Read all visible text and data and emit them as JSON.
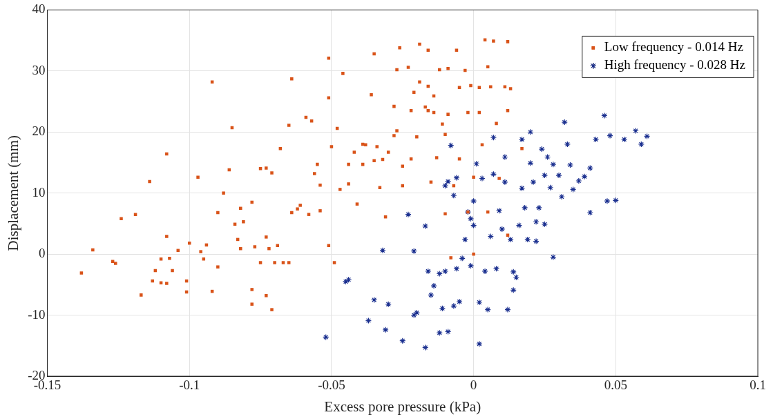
{
  "chart_data": {
    "type": "scatter",
    "xlabel": "Excess pore pressure (kPa)",
    "ylabel": "Displacement (mm)",
    "xlim": [
      -0.15,
      0.1
    ],
    "xticks": [
      -0.15,
      -0.1,
      -0.05,
      0,
      0.05,
      0.1
    ],
    "ylim": [
      -20,
      40
    ],
    "yticks": [
      -20,
      -10,
      0,
      10,
      20,
      30,
      40
    ],
    "grid": true,
    "legend": "top right",
    "series": [
      {
        "name": "Low frequency - 0.014 Hz",
        "color": "#d95319",
        "marker": "square",
        "x": [
          -0.138,
          -0.134,
          -0.127,
          -0.124,
          -0.126,
          -0.119,
          -0.117,
          -0.114,
          -0.113,
          -0.112,
          -0.11,
          -0.11,
          -0.108,
          -0.108,
          -0.107,
          -0.106,
          -0.108,
          -0.104,
          -0.101,
          -0.101,
          -0.1,
          -0.097,
          -0.096,
          -0.095,
          -0.094,
          -0.092,
          -0.092,
          -0.09,
          -0.09,
          -0.088,
          -0.086,
          -0.085,
          -0.084,
          -0.083,
          -0.082,
          -0.082,
          -0.081,
          -0.078,
          -0.078,
          -0.078,
          -0.077,
          -0.075,
          -0.075,
          -0.073,
          -0.073,
          -0.073,
          -0.072,
          -0.071,
          -0.071,
          -0.07,
          -0.069,
          -0.068,
          -0.067,
          -0.065,
          -0.064,
          -0.065,
          -0.064,
          -0.062,
          -0.061,
          -0.059,
          -0.058,
          -0.057,
          -0.056,
          -0.055,
          -0.054,
          -0.054,
          -0.051,
          -0.051,
          -0.051,
          -0.05,
          -0.049,
          -0.048,
          -0.047,
          -0.046,
          -0.044,
          -0.044,
          -0.042,
          -0.041,
          -0.039,
          -0.039,
          -0.038,
          -0.036,
          -0.035,
          -0.035,
          -0.034,
          -0.033,
          -0.032,
          -0.031,
          -0.03,
          -0.028,
          -0.028,
          -0.027,
          -0.027,
          -0.026,
          -0.025,
          -0.025,
          -0.023,
          -0.022,
          -0.022,
          -0.021,
          -0.02,
          -0.019,
          -0.019,
          -0.017,
          -0.016,
          -0.016,
          -0.016,
          -0.015,
          -0.014,
          -0.014,
          -0.013,
          -0.012,
          -0.011,
          -0.01,
          -0.01,
          -0.009,
          -0.009,
          -0.008,
          -0.007,
          -0.006,
          -0.005,
          -0.005,
          -0.003,
          -0.002,
          -0.002,
          -0.001,
          0.0,
          0.0,
          0.002,
          0.002,
          0.003,
          0.004,
          0.005,
          0.005,
          0.006,
          0.007,
          0.008,
          0.009,
          0.011,
          0.012,
          0.012,
          0.013,
          0.012,
          0.017
        ],
        "values": [
          -3.1,
          0.7,
          -1.2,
          5.8,
          -1.5,
          6.5,
          -6.7,
          11.9,
          -4.4,
          -2.7,
          -0.8,
          -4.7,
          16.4,
          2.9,
          -0.7,
          -2.7,
          -4.8,
          0.6,
          -4.4,
          -6.2,
          1.8,
          12.6,
          0.4,
          -0.8,
          1.5,
          28.2,
          -6.1,
          -2.1,
          6.8,
          10.0,
          13.8,
          20.7,
          4.9,
          2.4,
          0.9,
          7.5,
          5.3,
          8.5,
          -5.8,
          -8.2,
          1.2,
          -1.4,
          14.0,
          14.1,
          2.8,
          -6.8,
          0.9,
          13.3,
          -9.1,
          -1.4,
          1.4,
          17.3,
          -1.4,
          -1.4,
          28.7,
          21.1,
          6.8,
          7.4,
          8.0,
          22.4,
          6.5,
          21.8,
          13.2,
          14.7,
          7.1,
          11.3,
          32.1,
          25.6,
          1.4,
          17.6,
          -1.4,
          20.6,
          10.6,
          29.6,
          14.7,
          11.5,
          16.7,
          8.2,
          14.7,
          18.0,
          17.9,
          26.1,
          32.8,
          15.3,
          17.6,
          10.9,
          15.5,
          6.1,
          16.7,
          19.4,
          24.2,
          20.2,
          30.2,
          33.8,
          11.2,
          14.4,
          30.6,
          23.5,
          15.6,
          26.5,
          19.2,
          34.4,
          28.2,
          24.1,
          23.5,
          27.5,
          33.4,
          11.8,
          25.9,
          23.2,
          15.8,
          30.2,
          21.3,
          6.6,
          19.6,
          30.4,
          22.9,
          -0.6,
          11.2,
          33.4,
          27.3,
          15.6,
          30.1,
          6.9,
          23.2,
          27.6,
          0.0,
          12.6,
          27.3,
          23.2,
          17.9,
          35.1,
          6.9,
          30.7,
          27.4,
          34.9,
          21.4,
          12.4,
          27.4,
          34.8,
          23.5,
          27.1,
          3.1,
          17.3
        ]
      },
      {
        "name": "High frequency - 0.028 Hz",
        "color": "#1a2f8f",
        "marker": "cross",
        "x": [
          -0.052,
          -0.045,
          -0.044,
          -0.037,
          -0.035,
          -0.032,
          -0.031,
          -0.03,
          -0.025,
          -0.023,
          -0.021,
          -0.021,
          -0.02,
          -0.017,
          -0.017,
          -0.016,
          -0.015,
          -0.014,
          -0.012,
          -0.012,
          -0.011,
          -0.01,
          -0.01,
          -0.009,
          -0.009,
          -0.008,
          -0.007,
          -0.007,
          -0.006,
          -0.006,
          -0.005,
          -0.004,
          -0.003,
          -0.002,
          -0.001,
          -0.001,
          0.0,
          0.0,
          0.001,
          0.002,
          0.002,
          0.003,
          0.004,
          0.005,
          0.006,
          0.007,
          0.007,
          0.008,
          0.009,
          0.01,
          0.011,
          0.011,
          0.012,
          0.013,
          0.014,
          0.014,
          0.015,
          0.016,
          0.017,
          0.017,
          0.018,
          0.019,
          0.02,
          0.02,
          0.021,
          0.022,
          0.022,
          0.023,
          0.024,
          0.025,
          0.025,
          0.026,
          0.027,
          0.028,
          0.028,
          0.03,
          0.031,
          0.032,
          0.033,
          0.034,
          0.035,
          0.037,
          0.039,
          0.041,
          0.041,
          0.043,
          0.046,
          0.047,
          0.048,
          0.05,
          0.053,
          0.057,
          0.059,
          0.061
        ],
        "values": [
          -13.6,
          -4.5,
          -4.2,
          -10.9,
          -7.5,
          0.6,
          -12.4,
          -8.2,
          -14.2,
          6.5,
          0.5,
          -10.0,
          -9.6,
          -15.3,
          4.6,
          -2.8,
          -6.7,
          -5.2,
          -12.9,
          -3.2,
          -8.9,
          11.2,
          -2.8,
          -12.7,
          11.9,
          17.8,
          -8.5,
          9.6,
          -2.4,
          12.5,
          -7.8,
          -0.7,
          2.4,
          6.9,
          -1.9,
          5.8,
          8.7,
          4.7,
          14.8,
          -7.9,
          -14.7,
          12.4,
          -2.8,
          -9.1,
          2.9,
          13.1,
          19.1,
          -2.4,
          7.1,
          4.1,
          11.8,
          15.9,
          -9.1,
          2.4,
          -5.9,
          -2.9,
          -3.8,
          4.7,
          10.8,
          18.8,
          7.6,
          2.4,
          20.0,
          14.9,
          11.8,
          5.3,
          2.1,
          7.6,
          17.2,
          12.9,
          4.9,
          15.9,
          10.9,
          14.7,
          -0.5,
          12.9,
          9.4,
          21.6,
          18.0,
          14.6,
          10.6,
          12.0,
          12.7,
          14.1,
          6.8,
          18.8,
          22.7,
          8.7,
          19.4,
          8.8,
          18.8,
          20.2,
          18.0,
          19.3
        ]
      }
    ]
  }
}
